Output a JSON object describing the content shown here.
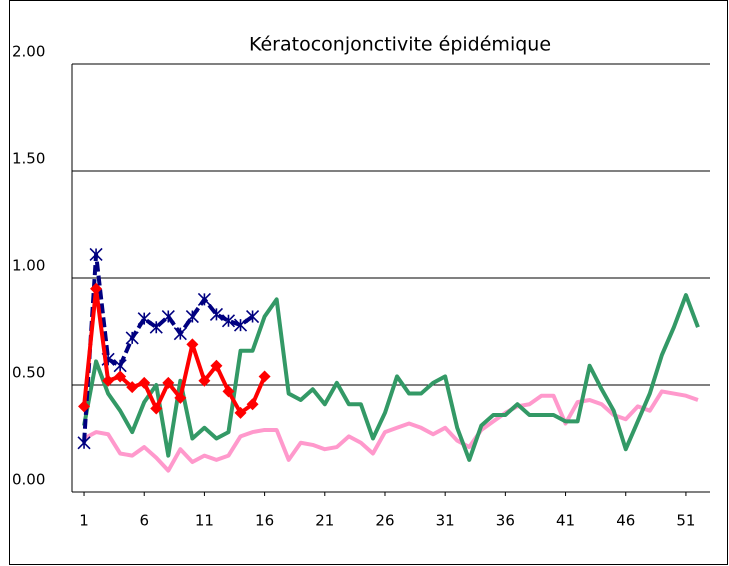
{
  "chart_data": {
    "type": "line",
    "title": "Kératoconjonctivite épidémique",
    "x": [
      1,
      2,
      3,
      4,
      5,
      6,
      7,
      8,
      9,
      10,
      11,
      12,
      13,
      14,
      15,
      16,
      17,
      18,
      19,
      20,
      21,
      22,
      23,
      24,
      25,
      26,
      27,
      28,
      29,
      30,
      31,
      32,
      33,
      34,
      35,
      36,
      37,
      38,
      39,
      40,
      41,
      42,
      43,
      44,
      45,
      46,
      47,
      48,
      49,
      50,
      51,
      52
    ],
    "xlim": [
      0,
      53
    ],
    "xticks": [
      1,
      6,
      11,
      16,
      21,
      26,
      31,
      36,
      41,
      46,
      51
    ],
    "ylim": [
      0,
      2
    ],
    "yticks": [
      {
        "value": 0,
        "label": "0.00"
      },
      {
        "value": 0.5,
        "label": "0.50"
      },
      {
        "value": 1,
        "label": "1.00"
      },
      {
        "value": 1.5,
        "label": "1.50"
      },
      {
        "value": 2,
        "label": "2.00"
      }
    ],
    "grid": true,
    "series": [
      {
        "color": "#ff99cc",
        "values": [
          0.25,
          0.28,
          0.27,
          0.18,
          0.17,
          0.21,
          0.16,
          0.1,
          0.2,
          0.14,
          0.17,
          0.15,
          0.17,
          0.26,
          0.28,
          0.29,
          0.29,
          0.15,
          0.23,
          0.22,
          0.2,
          0.21,
          0.26,
          0.23,
          0.18,
          0.28,
          0.3,
          0.32,
          0.3,
          0.27,
          0.3,
          0.24,
          0.21,
          0.29,
          0.33,
          0.37,
          0.4,
          0.41,
          0.45,
          0.45,
          0.32,
          0.42,
          0.43,
          0.41,
          0.36,
          0.34,
          0.4,
          0.38,
          0.47,
          0.46,
          0.45,
          0.43
        ]
      },
      {
        "color": "#339966",
        "values": [
          0.31,
          0.61,
          0.46,
          0.38,
          0.28,
          0.42,
          0.5,
          0.17,
          0.52,
          0.25,
          0.3,
          0.25,
          0.28,
          0.66,
          0.66,
          0.82,
          0.9,
          0.46,
          0.43,
          0.48,
          0.41,
          0.51,
          0.41,
          0.41,
          0.25,
          0.37,
          0.54,
          0.46,
          0.46,
          0.51,
          0.54,
          0.3,
          0.15,
          0.31,
          0.36,
          0.36,
          0.41,
          0.36,
          0.36,
          0.36,
          0.33,
          0.33,
          0.59,
          0.48,
          0.38,
          0.2,
          0.33,
          0.46,
          0.64,
          0.77,
          0.92,
          0.77
        ]
      },
      {
        "color": "#000080",
        "marker": "asterisk",
        "dashed": true,
        "values": [
          0.23,
          1.11,
          0.62,
          0.59,
          0.72,
          0.81,
          0.77,
          0.82,
          0.74,
          0.82,
          0.9,
          0.83,
          0.8,
          0.78,
          0.82,
          null,
          null,
          null,
          null,
          null,
          null,
          null,
          null,
          null,
          null,
          null,
          null,
          null,
          null,
          null,
          null,
          null,
          null,
          null,
          null,
          null,
          null,
          null,
          null,
          null,
          null,
          null,
          null,
          null,
          null,
          null,
          null,
          null,
          null,
          null,
          null,
          null
        ]
      },
      {
        "color": "#ff0000",
        "marker": "diamond",
        "values": [
          0.4,
          0.95,
          0.52,
          0.54,
          0.49,
          0.51,
          0.39,
          0.51,
          0.44,
          0.69,
          0.52,
          0.59,
          0.47,
          0.37,
          0.41,
          0.54,
          null,
          null,
          null,
          null,
          null,
          null,
          null,
          null,
          null,
          null,
          null,
          null,
          null,
          null,
          null,
          null,
          null,
          null,
          null,
          null,
          null,
          null,
          null,
          null,
          null,
          null,
          null,
          null,
          null,
          null,
          null,
          null,
          null,
          null,
          null,
          null
        ]
      }
    ]
  }
}
